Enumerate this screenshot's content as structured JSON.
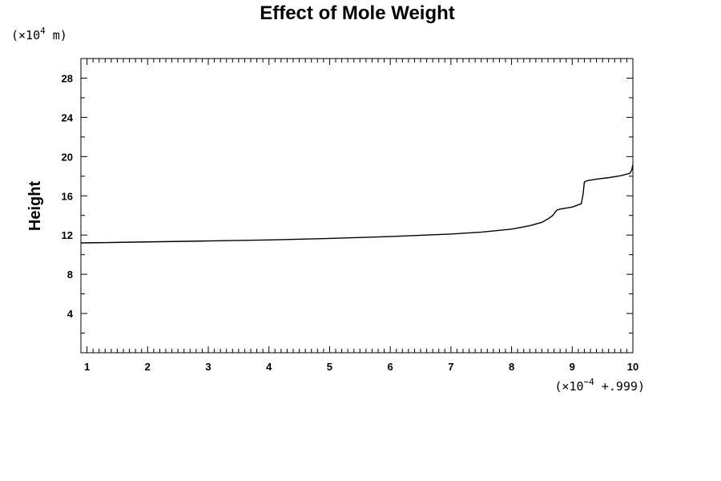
{
  "chart_data": {
    "type": "line",
    "title": "Effect of Mole Weight",
    "ylabel": "Height",
    "xlabel": "",
    "x_multiplier": {
      "prefix": "(×10",
      "exp": "−4",
      "suffix": " +.999)"
    },
    "y_multiplier": {
      "prefix": "(×10",
      "exp": "4",
      "suffix": " m)"
    },
    "xlim": [
      0.9,
      10
    ],
    "ylim": [
      0,
      30
    ],
    "x_ticks": [
      1,
      2,
      3,
      4,
      5,
      6,
      7,
      8,
      9,
      10
    ],
    "x_tick_labels": [
      "1",
      "2",
      "3",
      "4",
      "5",
      "6",
      "7",
      "8",
      "9",
      "10"
    ],
    "y_ticks": [
      4,
      8,
      12,
      16,
      20,
      24,
      28
    ],
    "y_tick_labels": [
      "4",
      "8",
      "12",
      "16",
      "20",
      "24",
      "28"
    ],
    "grid": false,
    "series": [
      {
        "x": [
          0.9,
          1.5,
          2.0,
          3.0,
          4.0,
          5.0,
          6.0,
          7.0,
          7.5,
          8.0,
          8.3,
          8.5,
          8.6,
          8.68,
          8.72,
          8.75,
          8.8,
          9.0,
          9.15,
          9.18,
          9.2,
          9.25,
          9.4,
          9.6,
          9.8,
          9.95,
          9.98,
          10.0
        ],
        "y": [
          11.2,
          11.25,
          11.3,
          11.4,
          11.5,
          11.65,
          11.85,
          12.1,
          12.3,
          12.6,
          12.95,
          13.3,
          13.65,
          14.0,
          14.35,
          14.55,
          14.65,
          14.85,
          15.2,
          16.2,
          17.4,
          17.55,
          17.7,
          17.85,
          18.05,
          18.3,
          18.6,
          19.2
        ]
      }
    ]
  }
}
